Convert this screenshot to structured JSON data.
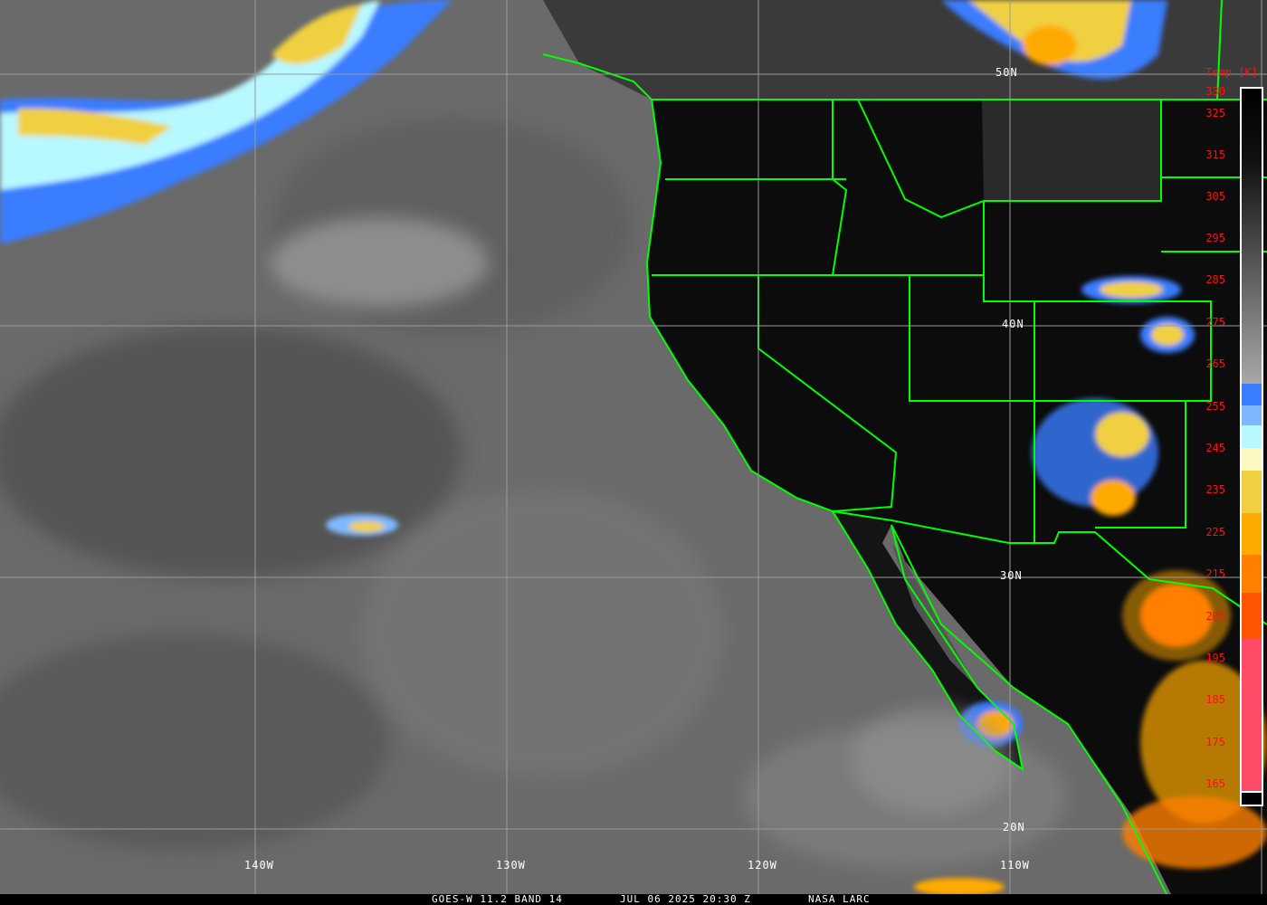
{
  "map": {
    "grid_labels": {
      "lat": [
        "50N",
        "40N",
        "30N",
        "20N"
      ],
      "lon": [
        "140W",
        "130W",
        "120W",
        "110W"
      ]
    },
    "colors": {
      "borders": "#00ff00",
      "gridlines": "#9a9a9a",
      "labels": "#ffffff"
    }
  },
  "colorbar": {
    "title": "Temp [K]",
    "ticks": [
      "330",
      "325",
      "315",
      "305",
      "295",
      "285",
      "275",
      "265",
      "255",
      "245",
      "235",
      "225",
      "215",
      "205",
      "195",
      "185",
      "175",
      "165"
    ],
    "label_color": "#ff1010",
    "segments": [
      {
        "from_k": 330,
        "to_k": 260,
        "color": "gradient black-to-gray"
      },
      {
        "from_k": 260,
        "to_k": 255,
        "color": "#3a7dff"
      },
      {
        "from_k": 255,
        "to_k": 250,
        "color": "#80b8ff"
      },
      {
        "from_k": 250,
        "to_k": 245,
        "color": "#b8f8ff"
      },
      {
        "from_k": 245,
        "to_k": 240,
        "color": "#fff8c0"
      },
      {
        "from_k": 240,
        "to_k": 230,
        "color": "#f0d040"
      },
      {
        "from_k": 230,
        "to_k": 220,
        "color": "#ffaa00"
      },
      {
        "from_k": 220,
        "to_k": 211,
        "color": "#ff8000"
      },
      {
        "from_k": 211,
        "to_k": 200,
        "color": "#ff5500"
      },
      {
        "from_k": 200,
        "to_k": 163,
        "color": "#ff4a68"
      }
    ]
  },
  "caption": {
    "product": "GOES-W 11.2 BAND 14",
    "datetime": "JUL 06 2025 20:30 Z",
    "source": "NASA LARC"
  }
}
